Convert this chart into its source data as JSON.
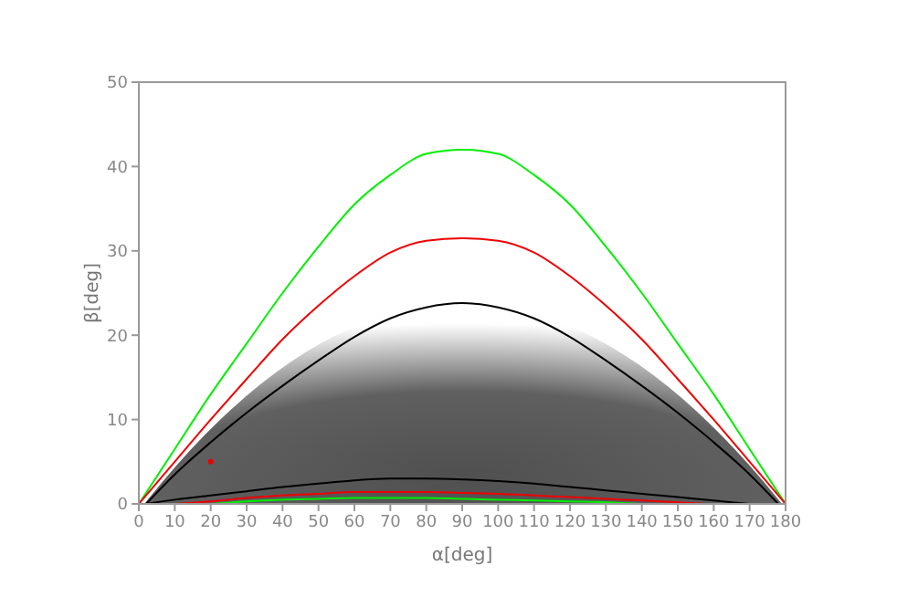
{
  "chart_data": {
    "type": "line",
    "xlabel": "α[deg]",
    "ylabel": "β[deg]",
    "xlim": [
      0,
      180
    ],
    "ylim": [
      0,
      50
    ],
    "xticks": [
      0,
      10,
      20,
      30,
      40,
      50,
      60,
      70,
      80,
      90,
      100,
      110,
      120,
      130,
      140,
      150,
      160,
      170,
      180
    ],
    "yticks": [
      0,
      10,
      20,
      30,
      40,
      50
    ],
    "grid": false,
    "marker": "none",
    "line_style": "solid",
    "series": [
      {
        "color": "#00ee00",
        "x": [
          0,
          10,
          20,
          30,
          40,
          50,
          60,
          70,
          80,
          90,
          100,
          110,
          120,
          130,
          140,
          150,
          160,
          170,
          180
        ],
        "values": [
          0,
          6.5,
          13,
          19,
          25,
          30.5,
          35.5,
          39,
          41.5,
          42,
          41.5,
          39,
          35.5,
          30.5,
          25,
          19,
          13,
          6.5,
          0
        ]
      },
      {
        "color": "#ee0000",
        "x": [
          0,
          10,
          20,
          30,
          40,
          50,
          60,
          70,
          80,
          90,
          100,
          110,
          120,
          130,
          140,
          150,
          160,
          170,
          180
        ],
        "values": [
          0,
          5,
          10,
          14.8,
          19.5,
          23.5,
          27,
          29.8,
          31.2,
          31.5,
          31.2,
          29.8,
          27,
          23.5,
          19.5,
          14.8,
          10,
          5,
          0
        ]
      },
      {
        "color": "#000000",
        "x": [
          2,
          10,
          20,
          30,
          40,
          50,
          60,
          70,
          80,
          90,
          100,
          110,
          120,
          130,
          140,
          150,
          160,
          170,
          178
        ],
        "values": [
          0,
          3.5,
          7.3,
          10.8,
          14,
          17,
          19.8,
          22,
          23.3,
          23.8,
          23.3,
          22,
          19.8,
          17,
          14,
          10.8,
          7.3,
          3.5,
          0
        ]
      },
      {
        "color": "#000000",
        "x": [
          2,
          10,
          20,
          30,
          40,
          50,
          60,
          70,
          80,
          90,
          100,
          110,
          120,
          130,
          140,
          150,
          160,
          170
        ],
        "values": [
          0,
          0.5,
          1,
          1.5,
          2,
          2.4,
          2.8,
          3,
          3,
          2.9,
          2.7,
          2.4,
          2,
          1.6,
          1.2,
          0.8,
          0.4,
          0
        ]
      },
      {
        "color": "#ee0000",
        "x": [
          10,
          20,
          30,
          40,
          50,
          60,
          70,
          80,
          90,
          100,
          110,
          120,
          130,
          140,
          150,
          158
        ],
        "values": [
          0,
          0.3,
          0.7,
          1,
          1.2,
          1.4,
          1.4,
          1.4,
          1.3,
          1.2,
          1,
          0.8,
          0.6,
          0.4,
          0.2,
          0
        ]
      },
      {
        "color": "#00ee00",
        "x": [
          20,
          30,
          40,
          50,
          60,
          70,
          80,
          90,
          100,
          110,
          120,
          130,
          140
        ],
        "values": [
          0,
          0.3,
          0.5,
          0.6,
          0.7,
          0.7,
          0.7,
          0.6,
          0.5,
          0.4,
          0.3,
          0.2,
          0
        ]
      },
      {
        "type": "scatter",
        "marker": "circle",
        "color": "#ee0000",
        "x": [
          20
        ],
        "values": [
          5
        ]
      }
    ]
  }
}
